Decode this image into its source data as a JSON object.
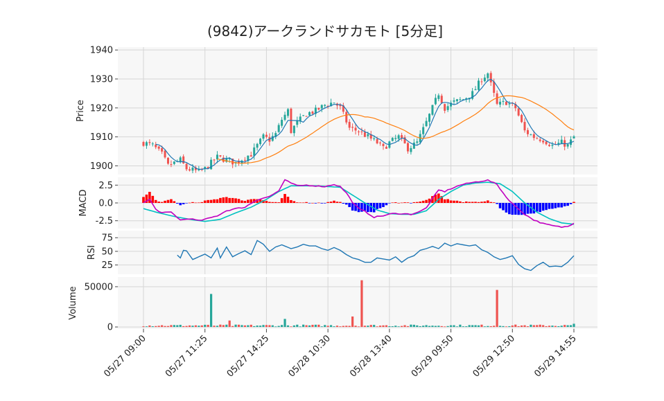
{
  "chart_data": {
    "type": "candlestick",
    "title": "(9842)アークランドサカモト  [5分足]",
    "x_tick_labels": [
      "05/27 09:00",
      "05/27 11:25",
      "05/27 14:25",
      "05/28 10:30",
      "05/28 13:40",
      "05/29 09:50",
      "05/29 12:50",
      "05/29 14:55"
    ],
    "panels": [
      {
        "name": "price",
        "ylabel": "Price",
        "ylim": [
          1897,
          1941
        ],
        "yticks": [
          1900,
          1910,
          1920,
          1930,
          1940
        ],
        "anchors": [
          [
            0,
            1908
          ],
          [
            3,
            1907
          ],
          [
            6,
            1904
          ],
          [
            8,
            1900
          ],
          [
            12,
            1902
          ],
          [
            14,
            1899
          ],
          [
            18,
            1898
          ],
          [
            20,
            1899
          ],
          [
            22,
            1901
          ],
          [
            24,
            1903
          ],
          [
            27,
            1902
          ],
          [
            30,
            1901
          ],
          [
            33,
            1903
          ],
          [
            35,
            1904
          ],
          [
            37,
            1907
          ],
          [
            39,
            1910
          ],
          [
            41,
            1909
          ],
          [
            43,
            1911
          ],
          [
            45,
            1916
          ],
          [
            47,
            1919
          ],
          [
            48,
            1912
          ],
          [
            50,
            1915
          ],
          [
            53,
            1918
          ],
          [
            56,
            1919
          ],
          [
            59,
            1921
          ],
          [
            62,
            1922
          ],
          [
            64,
            1920
          ],
          [
            67,
            1913
          ],
          [
            70,
            1912
          ],
          [
            73,
            1910
          ],
          [
            76,
            1908
          ],
          [
            78,
            1906
          ],
          [
            80,
            1908
          ],
          [
            83,
            1910
          ],
          [
            86,
            1906
          ],
          [
            89,
            1908
          ],
          [
            92,
            1915
          ],
          [
            94,
            1920
          ],
          [
            96,
            1925
          ],
          [
            98,
            1920
          ],
          [
            101,
            1922
          ],
          [
            104,
            1923
          ],
          [
            107,
            1925
          ],
          [
            110,
            1930
          ],
          [
            112,
            1932
          ],
          [
            113,
            1928
          ],
          [
            115,
            1921
          ],
          [
            118,
            1922
          ],
          [
            121,
            1920
          ],
          [
            124,
            1912
          ],
          [
            127,
            1910
          ],
          [
            130,
            1909
          ],
          [
            133,
            1907
          ],
          [
            136,
            1908
          ],
          [
            138,
            1907
          ],
          [
            140,
            1910
          ]
        ]
      },
      {
        "name": "macd",
        "ylabel": "MACD",
        "ylim": [
          -3.6,
          3.6
        ],
        "yticks": [
          2.5,
          0.0,
          -2.5
        ],
        "macd_anchors": [
          [
            0,
            0
          ],
          [
            2,
            0.5
          ],
          [
            4,
            -0.9
          ],
          [
            6,
            -1.4
          ],
          [
            9,
            -1.3
          ],
          [
            12,
            -2.4
          ],
          [
            15,
            -2.2
          ],
          [
            18,
            -2.5
          ],
          [
            21,
            -2.2
          ],
          [
            24,
            -1.8
          ],
          [
            27,
            -1.1
          ],
          [
            30,
            -0.8
          ],
          [
            33,
            -0.6
          ],
          [
            36,
            0.2
          ],
          [
            38,
            0.6
          ],
          [
            41,
            0.9
          ],
          [
            44,
            1.7
          ],
          [
            46,
            3.2
          ],
          [
            48,
            2.8
          ],
          [
            50,
            2.4
          ],
          [
            53,
            2.5
          ],
          [
            56,
            2.4
          ],
          [
            59,
            2.3
          ],
          [
            62,
            2.6
          ],
          [
            64,
            2.3
          ],
          [
            66,
            1.4
          ],
          [
            68,
            0.1
          ],
          [
            70,
            -0.8
          ],
          [
            72,
            -1.2
          ],
          [
            75,
            -2.0
          ],
          [
            78,
            -1.8
          ],
          [
            81,
            -1.5
          ],
          [
            84,
            -1.5
          ],
          [
            87,
            -1.6
          ],
          [
            90,
            -1.2
          ],
          [
            92,
            -0.7
          ],
          [
            94,
            0.6
          ],
          [
            96,
            1.8
          ],
          [
            98,
            1.6
          ],
          [
            100,
            2.0
          ],
          [
            103,
            2.5
          ],
          [
            106,
            2.8
          ],
          [
            109,
            3.0
          ],
          [
            112,
            3.2
          ],
          [
            115,
            2.6
          ],
          [
            118,
            0.8
          ],
          [
            121,
            -0.5
          ],
          [
            124,
            -1.6
          ],
          [
            127,
            -2.4
          ],
          [
            130,
            -2.9
          ],
          [
            133,
            -3.2
          ],
          [
            136,
            -3.4
          ],
          [
            138,
            -3.3
          ],
          [
            140,
            -2.8
          ]
        ],
        "signal_anchors": [
          [
            0,
            -0.8
          ],
          [
            5,
            -1.4
          ],
          [
            10,
            -1.9
          ],
          [
            15,
            -2.3
          ],
          [
            20,
            -2.6
          ],
          [
            25,
            -2.3
          ],
          [
            30,
            -1.4
          ],
          [
            35,
            -0.6
          ],
          [
            40,
            0.5
          ],
          [
            44,
            1.6
          ],
          [
            48,
            2.4
          ],
          [
            52,
            2.4
          ],
          [
            56,
            2.4
          ],
          [
            60,
            2.3
          ],
          [
            64,
            2.2
          ],
          [
            68,
            1.1
          ],
          [
            72,
            0.0
          ],
          [
            76,
            -1.0
          ],
          [
            80,
            -1.5
          ],
          [
            84,
            -1.6
          ],
          [
            88,
            -1.6
          ],
          [
            92,
            -1.1
          ],
          [
            96,
            0.5
          ],
          [
            100,
            1.6
          ],
          [
            104,
            2.5
          ],
          [
            108,
            2.8
          ],
          [
            112,
            2.9
          ],
          [
            116,
            2.7
          ],
          [
            120,
            1.6
          ],
          [
            124,
            0.0
          ],
          [
            128,
            -1.3
          ],
          [
            132,
            -2.2
          ],
          [
            136,
            -2.8
          ],
          [
            140,
            -3.0
          ]
        ]
      },
      {
        "name": "rsi",
        "ylabel": "RSI",
        "ylim": [
          8,
          88
        ],
        "yticks": [
          75,
          50,
          25
        ],
        "anchors": [
          [
            11,
            43
          ],
          [
            12,
            38
          ],
          [
            13,
            52
          ],
          [
            14,
            51
          ],
          [
            16,
            35
          ],
          [
            18,
            40
          ],
          [
            20,
            45
          ],
          [
            22,
            38
          ],
          [
            24,
            56
          ],
          [
            25,
            38
          ],
          [
            27,
            58
          ],
          [
            29,
            40
          ],
          [
            31,
            46
          ],
          [
            33,
            51
          ],
          [
            35,
            44
          ],
          [
            37,
            70
          ],
          [
            39,
            63
          ],
          [
            41,
            50
          ],
          [
            43,
            58
          ],
          [
            45,
            62
          ],
          [
            48,
            55
          ],
          [
            50,
            58
          ],
          [
            52,
            63
          ],
          [
            54,
            60
          ],
          [
            56,
            60
          ],
          [
            58,
            55
          ],
          [
            60,
            52
          ],
          [
            62,
            57
          ],
          [
            64,
            52
          ],
          [
            66,
            44
          ],
          [
            68,
            38
          ],
          [
            70,
            35
          ],
          [
            72,
            30
          ],
          [
            74,
            30
          ],
          [
            76,
            38
          ],
          [
            78,
            36
          ],
          [
            80,
            34
          ],
          [
            82,
            40
          ],
          [
            84,
            30
          ],
          [
            86,
            38
          ],
          [
            88,
            42
          ],
          [
            90,
            52
          ],
          [
            92,
            55
          ],
          [
            94,
            59
          ],
          [
            96,
            55
          ],
          [
            98,
            65
          ],
          [
            100,
            60
          ],
          [
            102,
            64
          ],
          [
            104,
            62
          ],
          [
            106,
            60
          ],
          [
            108,
            62
          ],
          [
            110,
            53
          ],
          [
            112,
            48
          ],
          [
            114,
            40
          ],
          [
            116,
            35
          ],
          [
            118,
            38
          ],
          [
            120,
            42
          ],
          [
            122,
            26
          ],
          [
            124,
            18
          ],
          [
            126,
            15
          ],
          [
            128,
            24
          ],
          [
            130,
            30
          ],
          [
            132,
            22
          ],
          [
            134,
            23
          ],
          [
            136,
            22
          ],
          [
            138,
            30
          ],
          [
            140,
            42
          ]
        ]
      },
      {
        "name": "volume",
        "ylabel": "Volume",
        "ylim": [
          -2500,
          62000
        ],
        "yticks": [
          50000,
          0
        ],
        "spikes": [
          [
            22,
            41000,
            "g"
          ],
          [
            28,
            8000,
            "r"
          ],
          [
            46,
            10000,
            "g"
          ],
          [
            68,
            13000,
            "r"
          ],
          [
            71,
            58000,
            "r"
          ],
          [
            115,
            46000,
            "r"
          ],
          [
            140,
            4000,
            "g"
          ]
        ]
      }
    ],
    "series": [
      {
        "name": "candle",
        "up_color": "#26a69a",
        "down_color": "#ef5350"
      },
      {
        "name": "ma_short",
        "color": "#1f77b4"
      },
      {
        "name": "ma_long",
        "color": "#ff7f0e"
      },
      {
        "name": "macd_line",
        "color": "#c000c0"
      },
      {
        "name": "signal_line",
        "color": "#00c0c0"
      },
      {
        "name": "histogram",
        "pos_color": "#ff0000",
        "neg_color": "#0000ff"
      },
      {
        "name": "rsi_line",
        "color": "#1f77b4"
      }
    ],
    "bar_count": 141,
    "grid": true,
    "legend": "none"
  }
}
